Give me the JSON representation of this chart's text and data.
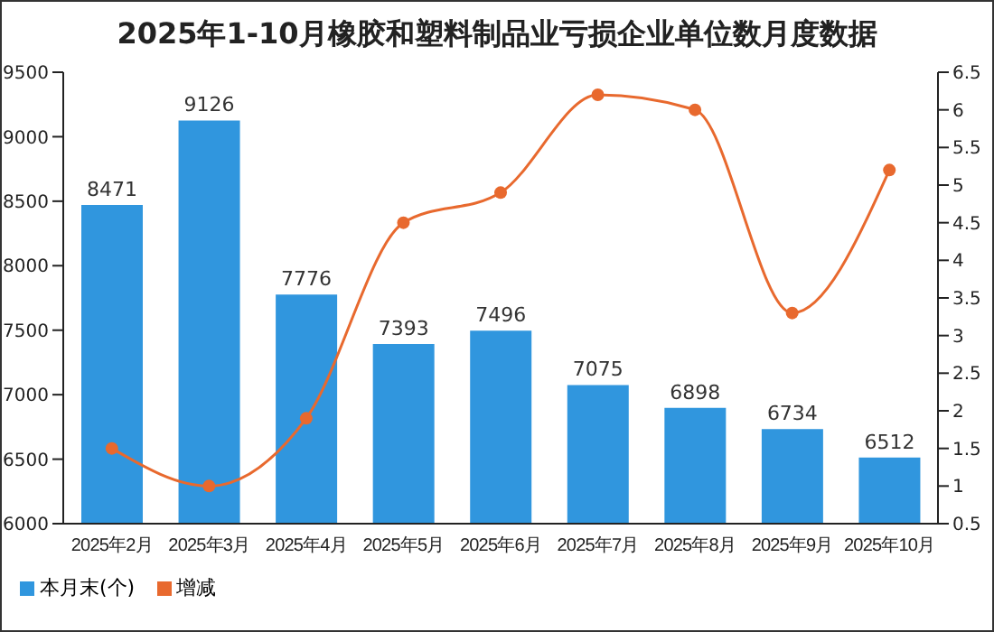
{
  "chart_data": {
    "type": "bar",
    "title": "2025年1-10月橡胶和塑料制品业亏损企业单位数月度数据",
    "categories": [
      "2025年2月",
      "2025年3月",
      "2025年4月",
      "2025年5月",
      "2025年6月",
      "2025年7月",
      "2025年8月",
      "2025年9月",
      "2025年10月"
    ],
    "series": [
      {
        "name": "本月末(个)",
        "color": "#3096de",
        "values": [
          8471,
          9126,
          7776,
          7393,
          7496,
          7075,
          6898,
          6734,
          6512
        ],
        "value_labels": [
          "8471",
          "9126",
          "7776",
          "7393",
          "7496",
          "7075",
          "6898",
          "6734",
          "6512"
        ]
      },
      {
        "name": "增减",
        "type": "line",
        "axis": "y2",
        "color": "#e8692e",
        "values": [
          1.5,
          1.0,
          1.9,
          4.5,
          4.9,
          6.2,
          6.0,
          3.3,
          5.2
        ]
      }
    ],
    "ylim": [
      6000,
      9500
    ],
    "yticks": [
      6000,
      6500,
      7000,
      7500,
      8000,
      8500,
      9000,
      9500
    ],
    "y2lim": [
      0.5,
      6.5
    ],
    "y2ticks": [
      0.5,
      1,
      1.5,
      2,
      2.5,
      3,
      3.5,
      4,
      4.5,
      5,
      5.5,
      6,
      6.5
    ],
    "grid": false,
    "legend": "bottom left",
    "marker": "circle",
    "line_style": "solid"
  }
}
